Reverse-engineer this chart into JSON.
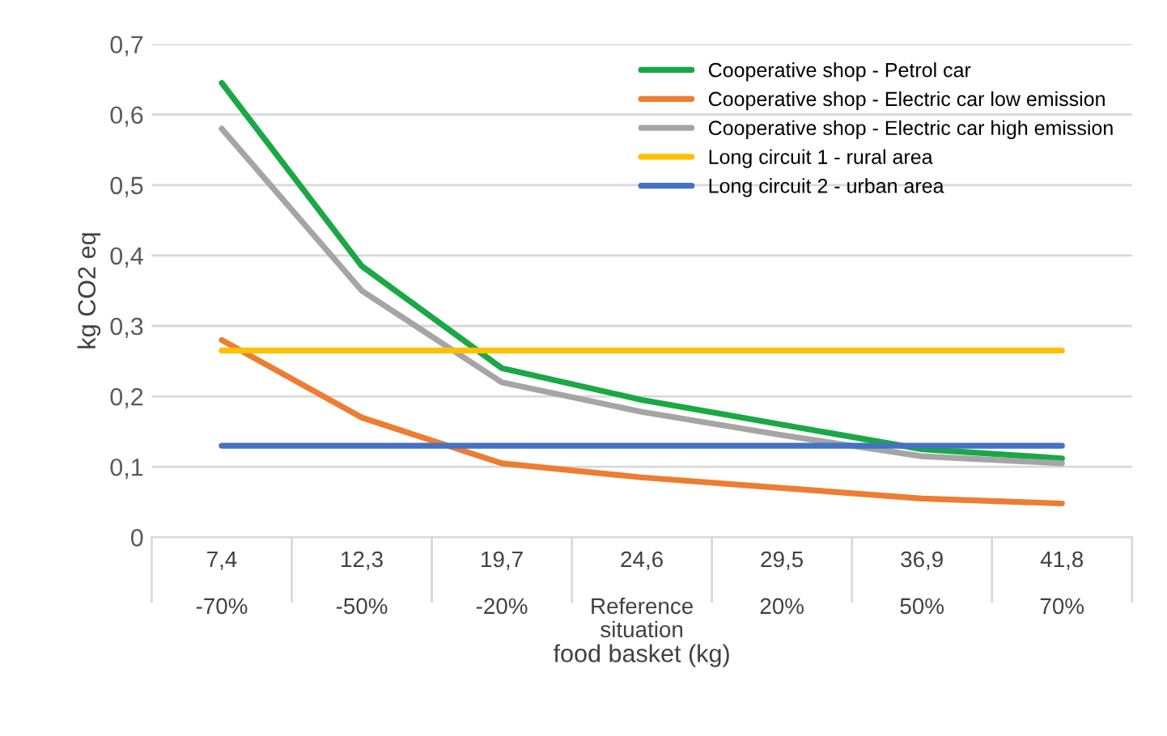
{
  "chart_data": {
    "type": "line",
    "xlabel": "food basket (kg)",
    "ylabel": "kg CO2 eq",
    "categories": [
      "7,4\n\n-70%",
      "12,3\n\n-50%",
      "19,7\n\n-20%",
      "24,6\n\nReference\nsituation",
      "29,5\n\n20%",
      "36,9\n\n50%",
      "41,8\n\n70%"
    ],
    "series": [
      {
        "name": "Cooperative shop - Petrol car",
        "color": "#1aa845",
        "values": [
          0.645,
          0.385,
          0.24,
          0.195,
          0.16,
          0.125,
          0.112
        ]
      },
      {
        "name": "Cooperative shop - Electric car low emission",
        "color": "#ed7d31",
        "values": [
          0.28,
          0.17,
          0.105,
          0.085,
          0.07,
          0.055,
          0.048
        ]
      },
      {
        "name": "Cooperative shop - Electric car high emission",
        "color": "#a5a5a5",
        "values": [
          0.58,
          0.35,
          0.22,
          0.178,
          0.145,
          0.115,
          0.105
        ]
      },
      {
        "name": "Long circuit 1 - rural area",
        "color": "#ffc000",
        "values": [
          0.265,
          0.265,
          0.265,
          0.265,
          0.265,
          0.265,
          0.265
        ]
      },
      {
        "name": "Long circuit 2 - urban area",
        "color": "#4472c4",
        "values": [
          0.13,
          0.13,
          0.13,
          0.13,
          0.13,
          0.13,
          0.13
        ]
      }
    ],
    "ylim": [
      0,
      0.7
    ],
    "yticks": [
      0,
      {
        "value": 0.1,
        "label": "0,1"
      },
      {
        "value": 0.2,
        "label": "0,2"
      },
      {
        "value": 0.3,
        "label": "0,3"
      },
      {
        "value": 0.4,
        "label": "0,4"
      },
      {
        "value": 0.5,
        "label": "0,5"
      },
      {
        "value": 0.6,
        "label": "0,6"
      },
      {
        "value": 0.7,
        "label": "0,7"
      }
    ],
    "grid": "y",
    "legend": "top right",
    "marker": "none",
    "line_style": "solid"
  }
}
